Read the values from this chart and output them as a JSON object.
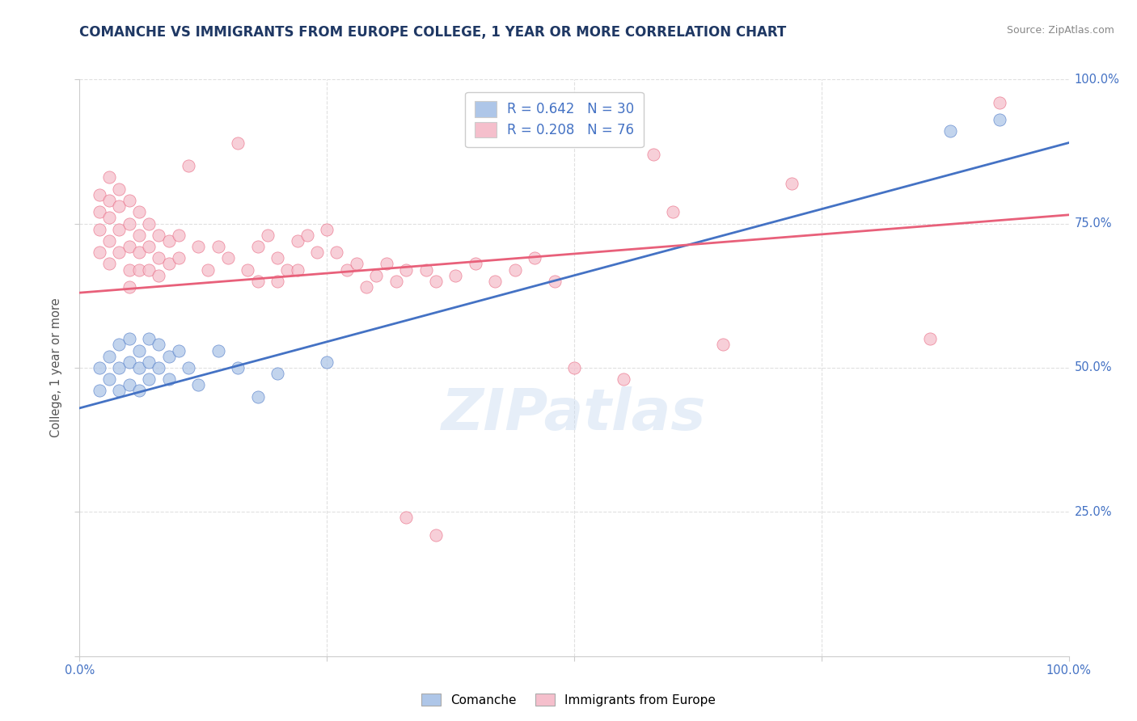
{
  "title": "COMANCHE VS IMMIGRANTS FROM EUROPE COLLEGE, 1 YEAR OR MORE CORRELATION CHART",
  "source_text": "Source: ZipAtlas.com",
  "ylabel": "College, 1 year or more",
  "xlim": [
    0.0,
    1.0
  ],
  "ylim": [
    0.0,
    1.0
  ],
  "ytick_labels_right": [
    "25.0%",
    "50.0%",
    "75.0%",
    "100.0%"
  ],
  "ytick_positions_right": [
    0.25,
    0.5,
    0.75,
    1.0
  ],
  "grid_color": "#e0e0e0",
  "background_color": "#ffffff",
  "watermark": "ZIPatlas",
  "comanche_color": "#aec6e8",
  "immigrants_color": "#f5bfcc",
  "line_blue": "#4472c4",
  "line_pink": "#e8607a",
  "title_color": "#1f3864",
  "axis_label_color": "#4472c4",
  "right_tick_color": "#4472c4",
  "blue_line_intercept": 0.43,
  "blue_line_slope": 0.46,
  "pink_line_intercept": 0.63,
  "pink_line_slope": 0.135,
  "comanche_points": [
    [
      0.02,
      0.5
    ],
    [
      0.02,
      0.46
    ],
    [
      0.03,
      0.52
    ],
    [
      0.03,
      0.48
    ],
    [
      0.04,
      0.54
    ],
    [
      0.04,
      0.5
    ],
    [
      0.04,
      0.46
    ],
    [
      0.05,
      0.55
    ],
    [
      0.05,
      0.51
    ],
    [
      0.05,
      0.47
    ],
    [
      0.06,
      0.53
    ],
    [
      0.06,
      0.5
    ],
    [
      0.06,
      0.46
    ],
    [
      0.07,
      0.55
    ],
    [
      0.07,
      0.51
    ],
    [
      0.07,
      0.48
    ],
    [
      0.08,
      0.54
    ],
    [
      0.08,
      0.5
    ],
    [
      0.09,
      0.52
    ],
    [
      0.09,
      0.48
    ],
    [
      0.1,
      0.53
    ],
    [
      0.11,
      0.5
    ],
    [
      0.12,
      0.47
    ],
    [
      0.14,
      0.53
    ],
    [
      0.16,
      0.5
    ],
    [
      0.18,
      0.45
    ],
    [
      0.2,
      0.49
    ],
    [
      0.25,
      0.51
    ],
    [
      0.88,
      0.91
    ],
    [
      0.93,
      0.93
    ]
  ],
  "immigrants_points": [
    [
      0.02,
      0.8
    ],
    [
      0.02,
      0.77
    ],
    [
      0.02,
      0.74
    ],
    [
      0.02,
      0.7
    ],
    [
      0.03,
      0.83
    ],
    [
      0.03,
      0.79
    ],
    [
      0.03,
      0.76
    ],
    [
      0.03,
      0.72
    ],
    [
      0.03,
      0.68
    ],
    [
      0.04,
      0.81
    ],
    [
      0.04,
      0.78
    ],
    [
      0.04,
      0.74
    ],
    [
      0.04,
      0.7
    ],
    [
      0.05,
      0.79
    ],
    [
      0.05,
      0.75
    ],
    [
      0.05,
      0.71
    ],
    [
      0.05,
      0.67
    ],
    [
      0.05,
      0.64
    ],
    [
      0.06,
      0.77
    ],
    [
      0.06,
      0.73
    ],
    [
      0.06,
      0.7
    ],
    [
      0.06,
      0.67
    ],
    [
      0.07,
      0.75
    ],
    [
      0.07,
      0.71
    ],
    [
      0.07,
      0.67
    ],
    [
      0.08,
      0.73
    ],
    [
      0.08,
      0.69
    ],
    [
      0.08,
      0.66
    ],
    [
      0.09,
      0.72
    ],
    [
      0.09,
      0.68
    ],
    [
      0.1,
      0.73
    ],
    [
      0.1,
      0.69
    ],
    [
      0.11,
      0.85
    ],
    [
      0.12,
      0.71
    ],
    [
      0.13,
      0.67
    ],
    [
      0.14,
      0.71
    ],
    [
      0.15,
      0.69
    ],
    [
      0.16,
      0.89
    ],
    [
      0.17,
      0.67
    ],
    [
      0.18,
      0.71
    ],
    [
      0.18,
      0.65
    ],
    [
      0.19,
      0.73
    ],
    [
      0.2,
      0.69
    ],
    [
      0.2,
      0.65
    ],
    [
      0.21,
      0.67
    ],
    [
      0.22,
      0.72
    ],
    [
      0.22,
      0.67
    ],
    [
      0.23,
      0.73
    ],
    [
      0.24,
      0.7
    ],
    [
      0.25,
      0.74
    ],
    [
      0.26,
      0.7
    ],
    [
      0.27,
      0.67
    ],
    [
      0.28,
      0.68
    ],
    [
      0.29,
      0.64
    ],
    [
      0.3,
      0.66
    ],
    [
      0.31,
      0.68
    ],
    [
      0.32,
      0.65
    ],
    [
      0.33,
      0.67
    ],
    [
      0.35,
      0.67
    ],
    [
      0.36,
      0.65
    ],
    [
      0.38,
      0.66
    ],
    [
      0.4,
      0.68
    ],
    [
      0.42,
      0.65
    ],
    [
      0.44,
      0.67
    ],
    [
      0.46,
      0.69
    ],
    [
      0.48,
      0.65
    ],
    [
      0.5,
      0.5
    ],
    [
      0.33,
      0.24
    ],
    [
      0.36,
      0.21
    ],
    [
      0.55,
      0.48
    ],
    [
      0.58,
      0.87
    ],
    [
      0.6,
      0.77
    ],
    [
      0.65,
      0.54
    ],
    [
      0.72,
      0.82
    ],
    [
      0.86,
      0.55
    ],
    [
      0.93,
      0.96
    ]
  ]
}
